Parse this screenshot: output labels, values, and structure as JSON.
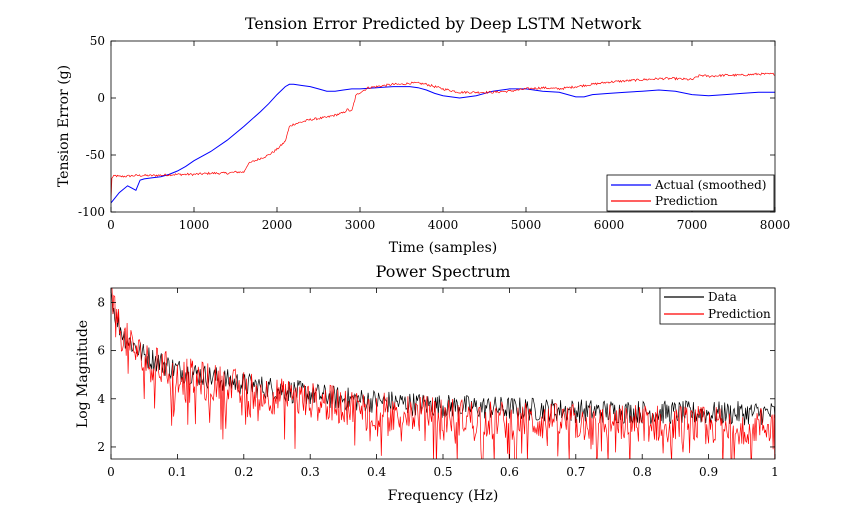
{
  "colors": {
    "actual": "#0000ff",
    "prediction": "#ff0000",
    "data": "#000000"
  },
  "chart_data": [
    {
      "type": "line",
      "title": "Tension Error Predicted by Deep LSTM Network",
      "xlabel": "Time (samples)",
      "ylabel": "Tension Error (g)",
      "xlim": [
        0,
        8000
      ],
      "ylim": [
        -100,
        50
      ],
      "xticks": [
        "0",
        "1000",
        "2000",
        "3000",
        "4000",
        "5000",
        "6000",
        "7000",
        "8000"
      ],
      "yticks": [
        "50",
        "0",
        "-50",
        "-100"
      ],
      "legend_position": "bottom-right",
      "grid": false,
      "series": [
        {
          "name": "Actual (smoothed)",
          "color": "#0000ff",
          "x": [
            0,
            100,
            200,
            250,
            300,
            350,
            400,
            500,
            600,
            700,
            800,
            900,
            1000,
            1200,
            1400,
            1600,
            1800,
            1900,
            2000,
            2100,
            2150,
            2200,
            2300,
            2400,
            2500,
            2600,
            2700,
            2800,
            2900,
            3000,
            3200,
            3400,
            3600,
            3700,
            3800,
            3900,
            4000,
            4200,
            4400,
            4600,
            4800,
            5000,
            5200,
            5400,
            5600,
            5700,
            5800,
            6000,
            6200,
            6400,
            6600,
            6800,
            7000,
            7200,
            7400,
            7600,
            7800,
            8000
          ],
          "y": [
            -92,
            -83,
            -77,
            -79,
            -81,
            -72,
            -71,
            -70,
            -69,
            -67,
            -64,
            -60,
            -55,
            -47,
            -37,
            -25,
            -12,
            -5,
            3,
            10,
            12,
            12,
            11,
            10,
            8,
            6,
            6,
            7,
            8,
            8,
            9,
            10,
            10,
            9,
            7,
            4,
            2,
            0,
            2,
            6,
            8,
            8,
            6,
            5,
            1,
            1,
            3,
            4,
            5,
            6,
            7,
            6,
            3,
            2,
            3,
            4,
            5,
            5
          ]
        },
        {
          "name": "Prediction",
          "color": "#ff0000",
          "noise": 1.0,
          "x": [
            0,
            10,
            50,
            100,
            300,
            500,
            800,
            1000,
            1200,
            1400,
            1500,
            1600,
            1650,
            1700,
            1800,
            1900,
            2000,
            2100,
            2150,
            2200,
            2300,
            2400,
            2500,
            2600,
            2700,
            2800,
            2850,
            2900,
            2950,
            3000,
            3100,
            3200,
            3300,
            3400,
            3500,
            3600,
            3700,
            3800,
            3900,
            4000,
            4200,
            4400,
            4600,
            4800,
            5000,
            5200,
            5400,
            5600,
            5800,
            6000,
            6200,
            6400,
            6600,
            6800,
            7000,
            7050,
            7100,
            7200,
            7400,
            7600,
            7800,
            8000
          ],
          "y": [
            -90,
            -70,
            -68,
            -69,
            -68,
            -68,
            -67,
            -67,
            -66,
            -66,
            -65,
            -65,
            -58,
            -56,
            -53,
            -50,
            -45,
            -38,
            -25,
            -23,
            -21,
            -19,
            -18,
            -17,
            -15,
            -13,
            -10,
            -12,
            2,
            5,
            9,
            10,
            11,
            12,
            12,
            13,
            13,
            12,
            10,
            8,
            5,
            5,
            5,
            6,
            8,
            9,
            8,
            10,
            12,
            14,
            15,
            16,
            17,
            17,
            16,
            18,
            20,
            19,
            20,
            20,
            21,
            21
          ]
        }
      ]
    },
    {
      "type": "line",
      "title": "Power Spectrum",
      "xlabel": "Frequency (Hz)",
      "ylabel": "Log Magnitude",
      "xlim": [
        0,
        1
      ],
      "ylim": [
        1.5,
        8.6
      ],
      "xticks": [
        "0",
        "0.1",
        "0.2",
        "0.3",
        "0.4",
        "0.5",
        "0.6",
        "0.7",
        "0.8",
        "0.9",
        "1"
      ],
      "yticks": [
        "8",
        "6",
        "4",
        "2"
      ],
      "legend_position": "top-right",
      "grid": false,
      "series": [
        {
          "name": "Data",
          "color": "#000000",
          "noise": 0.5,
          "x": [
            0,
            0.005,
            0.01,
            0.02,
            0.05,
            0.1,
            0.15,
            0.2,
            0.25,
            0.3,
            0.35,
            0.4,
            0.45,
            0.5,
            0.6,
            0.7,
            0.8,
            0.9,
            1.0
          ],
          "y": [
            8.5,
            7.6,
            7.2,
            6.6,
            5.8,
            5.2,
            4.9,
            4.6,
            4.4,
            4.2,
            4.0,
            3.9,
            3.8,
            3.7,
            3.6,
            3.5,
            3.45,
            3.4,
            3.4
          ]
        },
        {
          "name": "Prediction",
          "color": "#ff0000",
          "noise": 0.8,
          "x": [
            0,
            0.005,
            0.01,
            0.02,
            0.05,
            0.1,
            0.15,
            0.2,
            0.25,
            0.3,
            0.35,
            0.4,
            0.45,
            0.5,
            0.6,
            0.7,
            0.8,
            0.9,
            1.0
          ],
          "y": [
            8.5,
            7.5,
            7.1,
            6.5,
            5.6,
            5.0,
            4.7,
            4.4,
            4.1,
            3.9,
            3.7,
            3.5,
            3.4,
            3.3,
            3.1,
            3.0,
            3.0,
            2.9,
            2.9
          ]
        }
      ]
    }
  ]
}
